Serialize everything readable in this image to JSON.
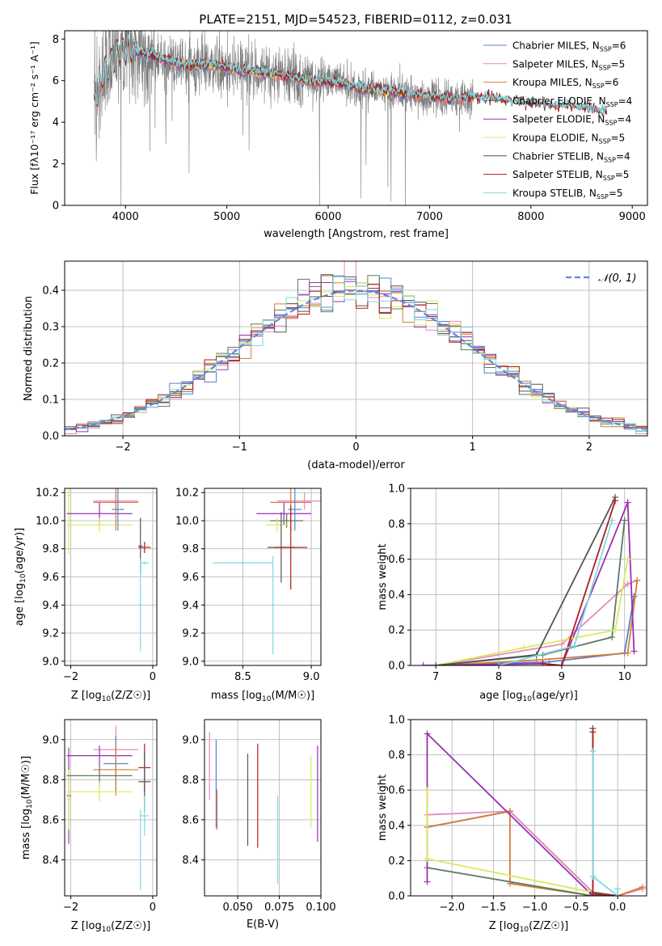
{
  "figure": {
    "title": "PLATE=2151, MJD=54523, FIBERID=0112, z=0.031"
  },
  "colors": {
    "chab_miles": "#5b7fd0",
    "salp_miles": "#e58ac0",
    "krou_miles": "#d57b36",
    "chab_elodie": "#5d7a5f",
    "salp_elodie": "#9a2fb0",
    "krou_elodie": "#d8ea5c",
    "chab_stelib": "#555555",
    "salp_stelib": "#b01c1c",
    "krou_stelib": "#7fd9e0",
    "data_grey": "#7a7a7a",
    "normal_curve": "#5b8ad6",
    "grid": "#b0b0b0"
  },
  "chart_data": [
    {
      "id": "spectrum",
      "type": "line",
      "xlabel": "wavelength [Angstrom, rest frame]",
      "ylabel": "Flux [f",
      "ylabel_full": "Flux [fλ10⁻¹⁷ erg cm⁻² s⁻¹ A⁻¹]",
      "xlim": [
        3400,
        9150
      ],
      "ylim": [
        0,
        8.4
      ],
      "xticks": [
        "4000",
        "5000",
        "6000",
        "7000",
        "8000",
        "9000"
      ],
      "yticks": [
        "0",
        "2",
        "4",
        "6",
        "8"
      ],
      "legend_position": "top-right",
      "legend": [
        {
          "name": "Chabrier MILES, N",
          "sub": "SSP",
          "eq": "=6",
          "color_key": "chab_miles"
        },
        {
          "name": "Salpeter MILES, N",
          "sub": "SSP",
          "eq": "=5",
          "color_key": "salp_miles"
        },
        {
          "name": "Kroupa MILES, N",
          "sub": "SSP",
          "eq": "=6",
          "color_key": "krou_miles"
        },
        {
          "name": "Chabrier ELODIE, N",
          "sub": "SSP",
          "eq": "=4",
          "color_key": "chab_elodie"
        },
        {
          "name": "Salpeter ELODIE, N",
          "sub": "SSP",
          "eq": "=4",
          "color_key": "salp_elodie"
        },
        {
          "name": "Kroupa ELODIE, N",
          "sub": "SSP",
          "eq": "=5",
          "color_key": "krou_elodie"
        },
        {
          "name": "Chabrier STELIB, N",
          "sub": "SSP",
          "eq": "=4",
          "color_key": "chab_stelib"
        },
        {
          "name": "Salpeter STELIB, N",
          "sub": "SSP",
          "eq": "=5",
          "color_key": "salp_stelib"
        },
        {
          "name": "Kroupa STELIB, N",
          "sub": "SSP",
          "eq": "=5",
          "color_key": "krou_stelib"
        }
      ],
      "continuum": {
        "x": [
          3690,
          3800,
          3950,
          4050,
          4200,
          4400,
          4600,
          4800,
          5000,
          5200,
          5500,
          5800,
          6100,
          6400,
          6700,
          7000,
          7300,
          7420,
          7600,
          7800,
          8000,
          8200,
          8400,
          8600,
          8700
        ],
        "y": [
          4.8,
          6.5,
          7.4,
          7.5,
          7.3,
          7.0,
          6.7,
          6.8,
          6.6,
          6.5,
          6.3,
          6.0,
          5.9,
          5.6,
          5.4,
          5.2,
          5.1,
          5.2,
          5.15,
          5.0,
          4.9,
          4.8,
          4.75,
          4.6,
          4.5
        ]
      },
      "data_range": [
        3690,
        7430
      ]
    },
    {
      "id": "residual_hist",
      "type": "histogram",
      "xlabel": "(data-model)/error",
      "ylabel": "Normed distribution",
      "xlim": [
        -2.5,
        2.5
      ],
      "ylim": [
        0,
        0.48
      ],
      "xticks": [
        "−2",
        "−1",
        "0",
        "1",
        "2"
      ],
      "yticks": [
        "0.0",
        "0.1",
        "0.2",
        "0.3",
        "0.4"
      ],
      "bin_width": 0.1,
      "legend": "𝒩(0, 1)",
      "legend_position": "top-right"
    },
    {
      "id": "age_vs_Z",
      "type": "errorbar",
      "xlabel": "Z [log",
      "xlabel_full": "Z [log10(Z/Z☉)]",
      "ylabel": "age  [log",
      "ylabel_full": "age [log10(age/yr)]",
      "xlim": [
        -2.15,
        0.1
      ],
      "ylim": [
        8.97,
        10.23
      ],
      "xticks": [
        "−2",
        "0"
      ],
      "yticks": [
        "9.0",
        "9.2",
        "9.4",
        "9.6",
        "9.8",
        "10.0",
        "10.2"
      ],
      "points": [
        {
          "c": "krou_elodie",
          "x": -2.05,
          "xe": 0.05,
          "y": 10.18,
          "ye": 0.42
        },
        {
          "c": "salp_elodie",
          "x": -1.3,
          "xe": 0.8,
          "y": 10.05,
          "ye": 0.08
        },
        {
          "c": "krou_elodie",
          "x": -1.3,
          "xe": 0.8,
          "y": 9.97,
          "ye": 0.05
        },
        {
          "c": "salp_miles",
          "x": -0.9,
          "xe": 0.55,
          "y": 10.14,
          "ye": 0.06
        },
        {
          "c": "krou_miles",
          "x": -0.9,
          "xe": 0.55,
          "y": 10.13,
          "ye": 0.2
        },
        {
          "c": "chab_miles",
          "x": -0.85,
          "xe": 0.15,
          "y": 10.08,
          "ye": 0.15
        },
        {
          "c": "chab_stelib",
          "x": -0.3,
          "xe": 0.05,
          "y": 9.82,
          "ye": 0.2
        },
        {
          "c": "salp_stelib",
          "x": -0.2,
          "xe": 0.15,
          "y": 9.81,
          "ye": 0.04
        },
        {
          "c": "krou_stelib",
          "x": -0.3,
          "xe": 0.05,
          "y": 9.4,
          "ye": 0.33
        },
        {
          "c": "krou_stelib",
          "x": -0.2,
          "xe": 0.1,
          "y": 9.7,
          "ye": 0.01
        }
      ]
    },
    {
      "id": "age_vs_mass",
      "type": "errorbar",
      "xlabel": "mass [log",
      "xlabel_full": "mass [log10(M/M☉)]",
      "xlim": [
        8.22,
        9.07
      ],
      "ylim": [
        8.97,
        10.23
      ],
      "xticks": [
        "8.5",
        "9.0"
      ],
      "yticks": [
        "9.0",
        "9.2",
        "9.4",
        "9.6",
        "9.8",
        "10.0",
        "10.2"
      ],
      "points": [
        {
          "c": "salp_miles",
          "x": 8.95,
          "xe": 0.2,
          "y": 10.14,
          "ye": 0.06
        },
        {
          "c": "krou_miles",
          "x": 8.85,
          "xe": 0.15,
          "y": 10.13,
          "ye": 0.2
        },
        {
          "c": "salp_elodie",
          "x": 8.8,
          "xe": 0.2,
          "y": 10.05,
          "ye": 0.08
        },
        {
          "c": "chab_miles",
          "x": 8.88,
          "xe": 0.05,
          "y": 10.08,
          "ye": 0.15
        },
        {
          "c": "chab_elodie",
          "x": 8.82,
          "xe": 0.12,
          "y": 10.0,
          "ye": 0.05
        },
        {
          "c": "krou_elodie",
          "x": 8.75,
          "xe": 0.08,
          "y": 9.97,
          "ye": 0.05
        },
        {
          "c": "chab_stelib",
          "x": 8.78,
          "xe": 0.1,
          "y": 9.81,
          "ye": 0.25
        },
        {
          "c": "salp_stelib",
          "x": 8.85,
          "xe": 0.12,
          "y": 9.81,
          "ye": 0.3
        },
        {
          "c": "krou_stelib",
          "x": 8.5,
          "xe": 0.22,
          "y": 9.7,
          "ye": 0.01
        },
        {
          "c": "krou_stelib",
          "x": 8.72,
          "xe": 0.01,
          "y": 9.4,
          "ye": 0.35
        }
      ]
    },
    {
      "id": "massweight_vs_age",
      "type": "line",
      "xlabel": "age  [log",
      "xlabel_full": "age [log10(age/yr)]",
      "ylabel": "mass weight",
      "xlim": [
        6.6,
        10.35
      ],
      "ylim": [
        0,
        1.0
      ],
      "xticks": [
        "7",
        "8",
        "9",
        "10"
      ],
      "yticks": [
        "0.0",
        "0.2",
        "0.4",
        "0.6",
        "0.8",
        "1.0"
      ],
      "series": [
        {
          "c": "chab_miles",
          "x": [
            7.0,
            8.8,
            10.0,
            10.15
          ],
          "y": [
            0.0,
            0.02,
            0.07,
            0.39
          ]
        },
        {
          "c": "salp_miles",
          "x": [
            7.0,
            9.0,
            10.05,
            10.2
          ],
          "y": [
            0.0,
            0.12,
            0.46,
            0.48
          ]
        },
        {
          "c": "krou_miles",
          "x": [
            7.0,
            8.6,
            10.05,
            10.2
          ],
          "y": [
            0.0,
            0.03,
            0.07,
            0.48
          ]
        },
        {
          "c": "chab_elodie",
          "x": [
            7.0,
            8.7,
            9.8,
            10.0
          ],
          "y": [
            0.0,
            0.06,
            0.16,
            0.82
          ]
        },
        {
          "c": "salp_elodie",
          "x": [
            6.8,
            8.7,
            9.0,
            10.05,
            10.15
          ],
          "y": [
            0.0,
            0.01,
            0.0,
            0.92,
            0.08
          ]
        },
        {
          "c": "krou_elodie",
          "x": [
            7.0,
            8.4,
            9.85,
            10.05
          ],
          "y": [
            0.0,
            0.1,
            0.2,
            0.6
          ]
        },
        {
          "c": "chab_stelib",
          "x": [
            7.0,
            8.6,
            9.85
          ],
          "y": [
            0.0,
            0.06,
            0.95
          ]
        },
        {
          "c": "salp_stelib",
          "x": [
            8.7,
            9.0,
            9.85
          ],
          "y": [
            0.01,
            0.0,
            0.93
          ]
        },
        {
          "c": "krou_stelib",
          "x": [
            8.0,
            9.2,
            9.8
          ],
          "y": [
            0.0,
            0.11,
            0.82
          ]
        }
      ]
    },
    {
      "id": "mass_vs_Z",
      "type": "errorbar",
      "xlabel": "Z [log",
      "xlabel_full": "Z [log10(Z/Z☉)]",
      "ylabel": "mass [log",
      "ylabel_full": "mass [log10(M/M☉)]",
      "xlim": [
        -2.15,
        0.1
      ],
      "ylim": [
        8.22,
        9.1
      ],
      "xticks": [
        "−2",
        "0"
      ],
      "yticks": [
        "8.4",
        "8.6",
        "8.8",
        "9.0"
      ],
      "points": [
        {
          "c": "salp_elodie",
          "x": -2.05,
          "xe": 0.05,
          "y": 8.72,
          "ye": 0.24
        },
        {
          "c": "krou_elodie",
          "x": -2.05,
          "xe": 0.05,
          "y": 8.7,
          "ye": 0.15
        },
        {
          "c": "salp_miles",
          "x": -0.9,
          "xe": 0.55,
          "y": 8.95,
          "ye": 0.12
        },
        {
          "c": "salp_elodie",
          "x": -1.3,
          "xe": 0.8,
          "y": 8.92,
          "ye": 0.05
        },
        {
          "c": "chab_miles",
          "x": -0.9,
          "xe": 0.3,
          "y": 8.88,
          "ye": 0.14
        },
        {
          "c": "krou_miles",
          "x": -0.9,
          "xe": 0.55,
          "y": 8.85,
          "ye": 0.13
        },
        {
          "c": "chab_elodie",
          "x": -1.3,
          "xe": 0.8,
          "y": 8.82,
          "ye": 0.05
        },
        {
          "c": "krou_elodie",
          "x": -1.3,
          "xe": 0.8,
          "y": 8.74,
          "ye": 0.05
        },
        {
          "c": "salp_stelib",
          "x": -0.2,
          "xe": 0.15,
          "y": 8.86,
          "ye": 0.12
        },
        {
          "c": "chab_stelib",
          "x": -0.2,
          "xe": 0.15,
          "y": 8.79,
          "ye": 0.15
        },
        {
          "c": "krou_stelib",
          "x": -0.2,
          "xe": 0.1,
          "y": 8.62,
          "ye": 0.1
        },
        {
          "c": "krou_stelib",
          "x": -0.3,
          "xe": 0.01,
          "y": 8.45,
          "ye": 0.2
        }
      ]
    },
    {
      "id": "mass_vs_ebv",
      "type": "errorbar",
      "xlabel": "E(B-V)",
      "xlim": [
        0.03,
        0.1
      ],
      "ylim": [
        8.22,
        9.1
      ],
      "xticks": [
        "0.050",
        "0.075",
        "0.100"
      ],
      "yticks": [
        "8.4",
        "8.6",
        "8.8",
        "9.0"
      ],
      "points": [
        {
          "c": "salp_miles",
          "x": 0.033,
          "xe": 0.0,
          "y": 8.87,
          "ye": 0.17
        },
        {
          "c": "chab_miles",
          "x": 0.037,
          "xe": 0.0,
          "y": 8.78,
          "ye": 0.22
        },
        {
          "c": "krou_miles",
          "x": 0.0375,
          "xe": 0.0,
          "y": 8.65,
          "ye": 0.1
        },
        {
          "c": "chab_stelib",
          "x": 0.056,
          "xe": 0.0,
          "y": 8.7,
          "ye": 0.23
        },
        {
          "c": "salp_stelib",
          "x": 0.062,
          "xe": 0.0,
          "y": 8.72,
          "ye": 0.26
        },
        {
          "c": "krou_stelib",
          "x": 0.074,
          "xe": 0.0,
          "y": 8.5,
          "ye": 0.22
        },
        {
          "c": "krou_elodie",
          "x": 0.094,
          "xe": 0.0,
          "y": 8.74,
          "ye": 0.18
        },
        {
          "c": "salp_elodie",
          "x": 0.098,
          "xe": 0.0,
          "y": 8.73,
          "ye": 0.24
        }
      ]
    },
    {
      "id": "massweight_vs_Z",
      "type": "line",
      "xlabel": "Z [log",
      "xlabel_full": "Z [log10(Z/Z☉)]",
      "ylabel": "mass weight",
      "xlim": [
        -2.5,
        0.35
      ],
      "ylim": [
        0,
        1.0
      ],
      "xticks": [
        "−2.0",
        "−1.5",
        "−1.0",
        "−0.5",
        "0.0"
      ],
      "yticks": [
        "0.0",
        "0.2",
        "0.4",
        "0.6",
        "0.8",
        "1.0"
      ],
      "series": [
        {
          "c": "chab_miles",
          "x": [
            -2.3,
            -1.3,
            -0.3,
            0.0
          ],
          "y": [
            0.39,
            0.48,
            0.02,
            0.0
          ]
        },
        {
          "c": "salp_miles",
          "x": [
            -2.3,
            -1.3,
            -0.3,
            0.0,
            0.3
          ],
          "y": [
            0.46,
            0.48,
            0.02,
            0.0,
            0.04
          ]
        },
        {
          "c": "krou_miles",
          "x": [
            -2.3,
            -1.3,
            -1.3,
            -0.3,
            0.0,
            0.3
          ],
          "y": [
            0.39,
            0.48,
            0.07,
            0.0,
            0.0,
            0.05
          ]
        },
        {
          "c": "chab_elodie",
          "x": [
            -2.3,
            -0.3,
            0.0
          ],
          "y": [
            0.16,
            0.0,
            0.0
          ]
        },
        {
          "c": "salp_elodie",
          "x": [
            -2.3,
            -2.3,
            -0.3,
            0.0
          ],
          "y": [
            0.08,
            0.92,
            0.0,
            0.0
          ]
        },
        {
          "c": "krou_elodie",
          "x": [
            -2.3,
            -2.3,
            -0.3,
            0.0
          ],
          "y": [
            0.6,
            0.21,
            0.02,
            0.0
          ]
        },
        {
          "c": "chab_stelib",
          "x": [
            -0.3,
            -0.3,
            0.0
          ],
          "y": [
            0.95,
            0.02,
            0.0
          ]
        },
        {
          "c": "salp_stelib",
          "x": [
            -0.3,
            -0.3,
            0.0
          ],
          "y": [
            0.93,
            0.01,
            0.0
          ]
        },
        {
          "c": "krou_stelib",
          "x": [
            -0.3,
            -0.3,
            0.0,
            0.0
          ],
          "y": [
            0.82,
            0.11,
            0.0,
            0.04
          ]
        }
      ]
    }
  ]
}
